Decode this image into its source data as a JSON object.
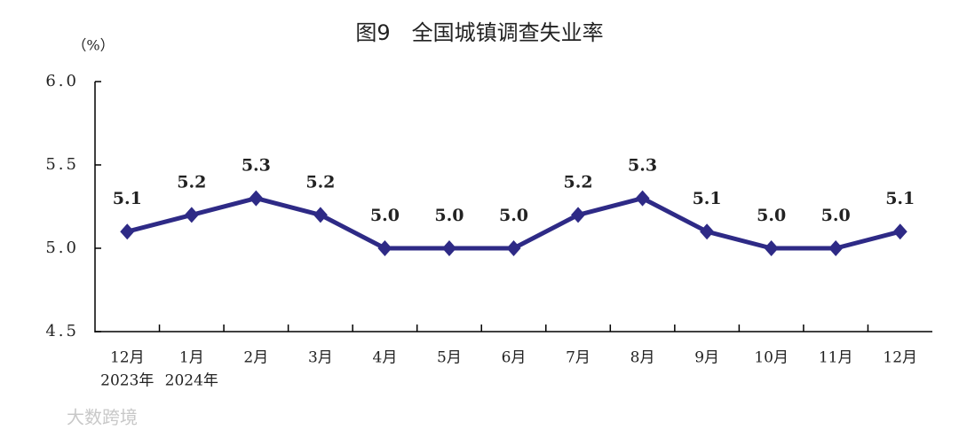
{
  "chart_data": {
    "type": "line",
    "title": "图9　全国城镇调查失业率",
    "y_unit": "（%）",
    "categories": [
      "12月",
      "1月",
      "2月",
      "3月",
      "4月",
      "5月",
      "6月",
      "7月",
      "8月",
      "9月",
      "10月",
      "11月",
      "12月"
    ],
    "category_sublabels": [
      "2023年",
      "2024年",
      null,
      null,
      null,
      null,
      null,
      null,
      null,
      null,
      null,
      null,
      null
    ],
    "series": [
      {
        "color": "#2e2a86",
        "values": [
          5.1,
          5.2,
          5.3,
          5.2,
          5.0,
          5.0,
          5.0,
          5.2,
          5.3,
          5.1,
          5.0,
          5.0,
          5.1
        ],
        "value_labels": [
          "5.1",
          "5.2",
          "5.3",
          "5.2",
          "5.0",
          "5.0",
          "5.0",
          "5.2",
          "5.3",
          "5.1",
          "5.0",
          "5.0",
          "5.1"
        ]
      }
    ],
    "ylim": [
      4.5,
      6.0
    ],
    "yticks": [
      {
        "value": 4.5,
        "label": "4.5"
      },
      {
        "value": 5.0,
        "label": "5.0"
      },
      {
        "value": 5.5,
        "label": "5.5"
      },
      {
        "value": 6.0,
        "label": "6.0"
      }
    ],
    "grid": false,
    "watermark": "大数跨境"
  }
}
